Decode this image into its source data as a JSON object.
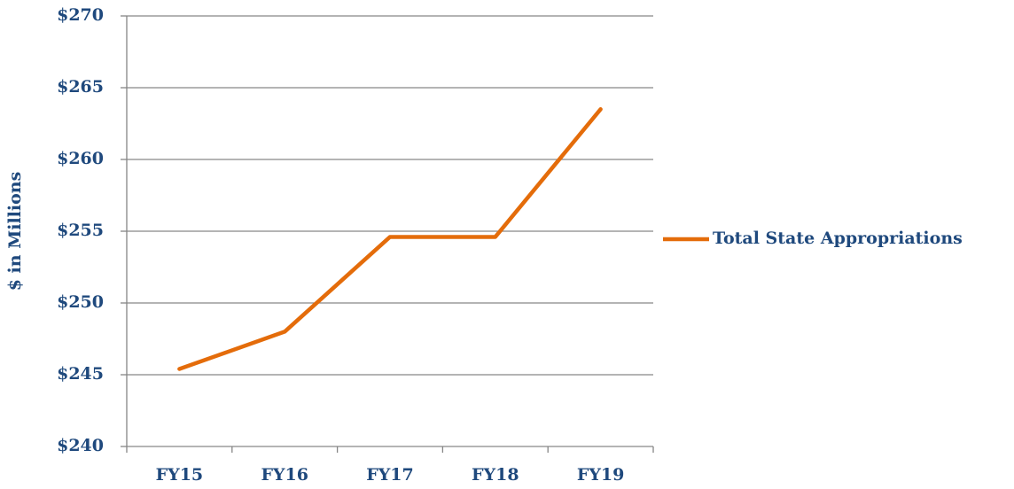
{
  "chart_data": {
    "type": "line",
    "y_label": "$ in Millions",
    "categories": [
      "FY15",
      "FY16",
      "FY17",
      "FY18",
      "FY19"
    ],
    "series": [
      {
        "name": "Total State Appropriations",
        "color": "#e46c0a",
        "values": [
          245.4,
          248.0,
          254.6,
          254.6,
          263.5
        ]
      }
    ],
    "ylim": [
      240,
      270
    ],
    "yticks": [
      {
        "value": 240,
        "label": "$240"
      },
      {
        "value": 245,
        "label": "$245"
      },
      {
        "value": 250,
        "label": "$250"
      },
      {
        "value": 255,
        "label": "$255"
      },
      {
        "value": 260,
        "label": "$260"
      },
      {
        "value": 265,
        "label": "$265"
      },
      {
        "value": 270,
        "label": "$270"
      }
    ],
    "grid": true,
    "legend": "right"
  }
}
